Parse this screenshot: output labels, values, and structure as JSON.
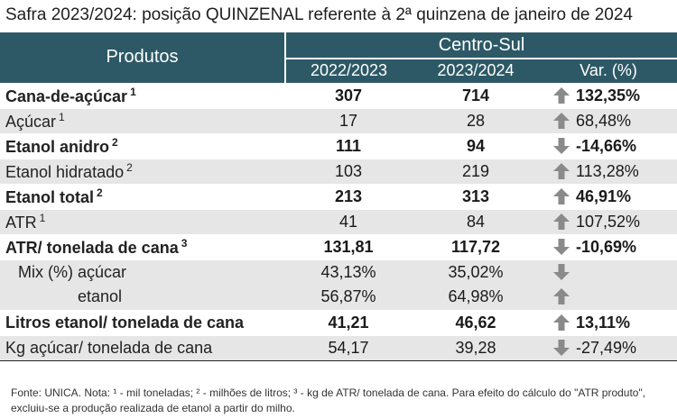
{
  "title": "Safra 2023/2024: posição QUINZENAL referente à 2ª quinzena de janeiro de 2024",
  "header": {
    "products": "Produtos",
    "region": "Centro-Sul",
    "col1": "2022/2023",
    "col2": "2023/2024",
    "col3": "Var. (%)"
  },
  "colors": {
    "header_bg": "#2d5966",
    "shade": "#e6e6e6",
    "arrow": "#8a8a8a"
  },
  "rows": [
    {
      "label": "Cana-de-açúcar",
      "sup": "1",
      "v1": "307",
      "v2": "714",
      "arrow": "up-arrow",
      "var": "132,35%"
    },
    {
      "label": "Açúcar",
      "sup": "1",
      "v1": "17",
      "v2": "28",
      "arrow": "up-arrow",
      "var": "68,48%"
    },
    {
      "label": "Etanol anidro",
      "sup": "2",
      "v1": "111",
      "v2": "94",
      "arrow": "down-arrow",
      "var": "-14,66%"
    },
    {
      "label": "Etanol hidratado",
      "sup": "2",
      "v1": "103",
      "v2": "219",
      "arrow": "up-arrow",
      "var": "113,28%"
    },
    {
      "label": "Etanol total",
      "sup": "2",
      "v1": "213",
      "v2": "313",
      "arrow": "up-arrow",
      "var": "46,91%"
    },
    {
      "label": "ATR",
      "sup": "1",
      "v1": "41",
      "v2": "84",
      "arrow": "up-arrow",
      "var": "107,52%"
    },
    {
      "label": "ATR/ tonelada de cana",
      "sup": "3",
      "v1": "131,81",
      "v2": "117,72",
      "arrow": "down-arrow",
      "var": "-10,69%"
    }
  ],
  "mix": {
    "label": "Mix (%)",
    "rows": [
      {
        "sub": "açúcar",
        "v1": "43,13%",
        "v2": "35,02%",
        "arrow": "down-arrow"
      },
      {
        "sub": "etanol",
        "v1": "56,87%",
        "v2": "64,98%",
        "arrow": "up-arrow"
      }
    ]
  },
  "rows2": [
    {
      "label": "Litros etanol/ tonelada de cana",
      "v1": "41,21",
      "v2": "46,62",
      "arrow": "up-arrow",
      "var": "13,11%"
    },
    {
      "label": "Kg açúcar/ tonelada de cana",
      "v1": "54,17",
      "v2": "39,28",
      "arrow": "down-arrow",
      "var": "-27,49%"
    }
  ],
  "footnote": "Fonte: UNICA. Nota: ¹ - mil toneladas; ² - milhões de litros; ³ - kg de ATR/ tonelada de cana. Para efeito do cálculo do \"ATR produto\", excluiu-se a produção realizada de etanol a partir do milho."
}
